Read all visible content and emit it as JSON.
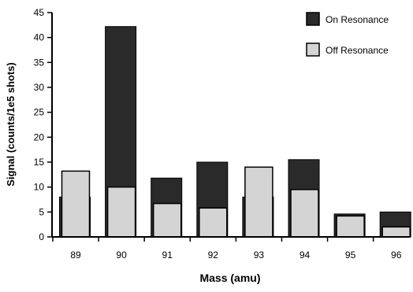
{
  "chart_data": {
    "type": "bar",
    "title": "",
    "xlabel": "Mass (amu)",
    "ylabel": "Signal  (counts/1e5  shots)",
    "categories": [
      "89",
      "90",
      "91",
      "92",
      "93",
      "94",
      "95",
      "96"
    ],
    "yticks": [
      "0",
      "5",
      "10",
      "15",
      "20",
      "25",
      "30",
      "35",
      "40",
      "45"
    ],
    "ylim": [
      0,
      45
    ],
    "grid": false,
    "legend_position": "top-right",
    "series": [
      {
        "name": "On Resonance",
        "color": "#2a2a2a",
        "values": [
          8,
          42.2,
          11.8,
          15,
          8,
          15.5,
          4.6,
          5
        ]
      },
      {
        "name": "Off Resonance",
        "color": "#d4d4d4",
        "values": [
          13.2,
          10,
          6.7,
          5.8,
          14,
          9.5,
          4.2,
          2
        ]
      }
    ]
  }
}
